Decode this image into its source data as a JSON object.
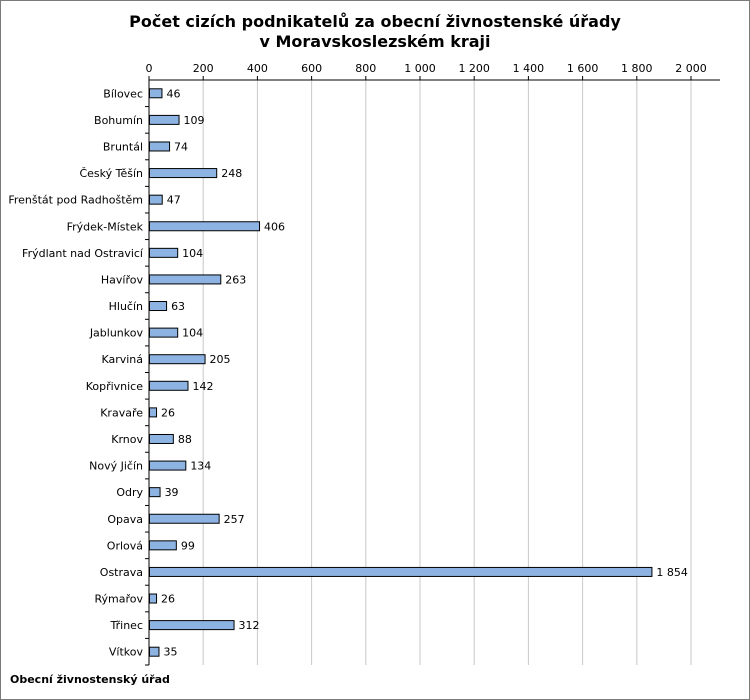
{
  "chart_data": {
    "type": "bar",
    "orientation": "horizontal",
    "title_lines": [
      "Počet cizích podnikatelů za obecní živnostenské úřady",
      "v Moravskoslezském kraji"
    ],
    "xlabel": "",
    "ylabel": "Obecní živnostenský úřad",
    "xlim": [
      0,
      2100
    ],
    "x_ticks": [
      0,
      200,
      400,
      600,
      800,
      1000,
      1200,
      1400,
      1600,
      1800,
      2000
    ],
    "x_tick_labels": [
      "0",
      "200",
      "400",
      "600",
      "800",
      "1 000",
      "1 200",
      "1 400",
      "1 600",
      "1 800",
      "2 000"
    ],
    "grid": true,
    "axis_position": "top",
    "bar_color": "#8db3e2",
    "categories": [
      "Bílovec",
      "Bohumín",
      "Bruntál",
      "Český Těšín",
      "Frenštát pod Radhoštěm",
      "Frýdek-Místek",
      "Frýdlant nad Ostravicí",
      "Havířov",
      "Hlučín",
      "Jablunkov",
      "Karviná",
      "Kopřivnice",
      "Kravaře",
      "Krnov",
      "Nový Jičín",
      "Odry",
      "Opava",
      "Orlová",
      "Ostrava",
      "Rýmařov",
      "Třinec",
      "Vítkov"
    ],
    "values": [
      46,
      109,
      74,
      248,
      47,
      406,
      104,
      263,
      63,
      104,
      205,
      142,
      26,
      88,
      134,
      39,
      257,
      99,
      1854,
      26,
      312,
      35
    ],
    "value_labels": [
      "46",
      "109",
      "74",
      "248",
      "47",
      "406",
      "104",
      "263",
      "63",
      "104",
      "205",
      "142",
      "26",
      "88",
      "134",
      "39",
      "257",
      "99",
      "1 854",
      "26",
      "312",
      "35"
    ]
  }
}
